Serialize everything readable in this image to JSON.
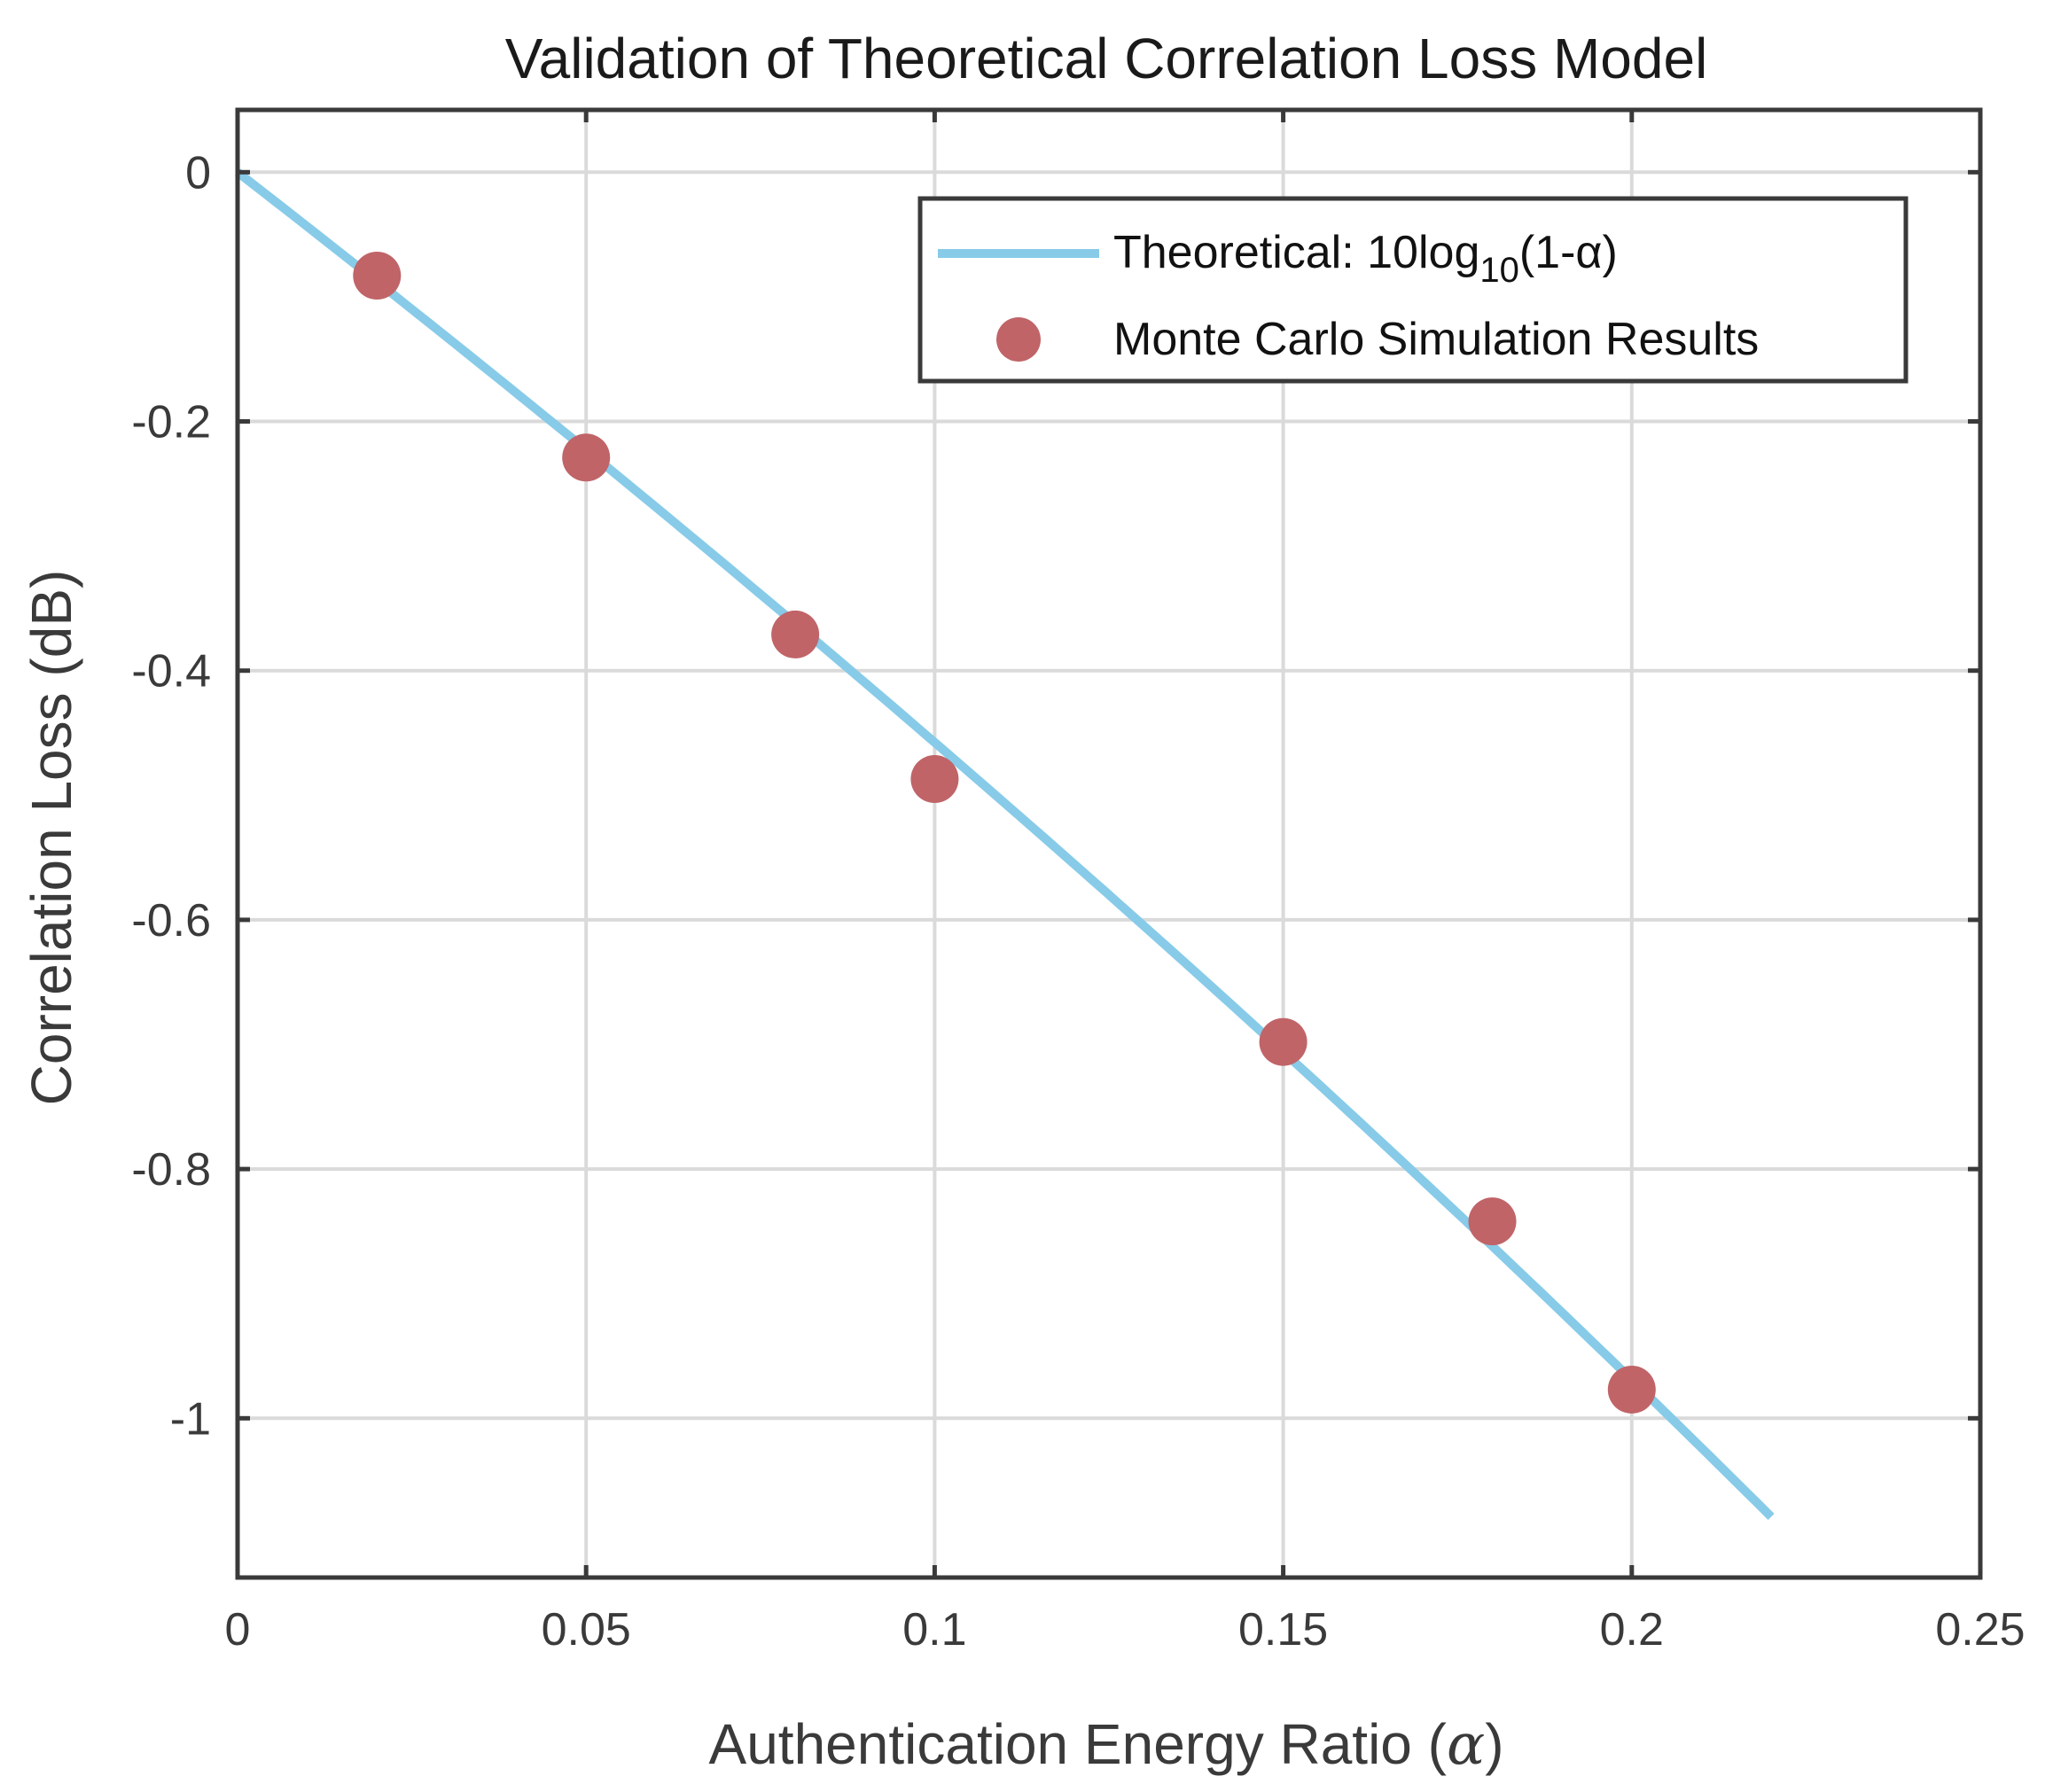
{
  "chart_data": {
    "type": "line",
    "title": "Validation of Theoretical Correlation Loss Model",
    "xlabel_prefix": "Authentication Energy Ratio (",
    "xlabel_symbol": "α",
    "xlabel_suffix": ")",
    "ylabel": "Correlation Loss (dB)",
    "xlim": [
      0,
      0.25
    ],
    "ylim": [
      -1.1278,
      0.05
    ],
    "xticks": [
      0,
      0.05,
      0.1,
      0.15,
      0.2,
      0.25
    ],
    "xtick_labels": [
      "0",
      "0.05",
      "0.1",
      "0.15",
      "0.2",
      "0.25"
    ],
    "yticks": [
      0,
      -0.2,
      -0.4,
      -0.6,
      -0.8,
      -1
    ],
    "ytick_labels": [
      "0",
      "-0.2",
      "-0.4",
      "-0.6",
      "-0.8",
      "-1"
    ],
    "grid": true,
    "legend_position": "top-right",
    "series": [
      {
        "name": "Theoretical",
        "legend_prefix": "Theoretical: 10log",
        "legend_sub": "10",
        "legend_suffix": "(1-α)",
        "kind": "line",
        "color": "#87CBE8",
        "function": "10*log10(1-x)",
        "x_range": [
          0,
          0.22
        ]
      },
      {
        "name": "Monte Carlo Simulation Results",
        "kind": "scatter",
        "color": "#C06468",
        "x": [
          0.02,
          0.05,
          0.08,
          0.1,
          0.15,
          0.18,
          0.2
        ],
        "y": [
          -0.083,
          -0.229,
          -0.371,
          -0.487,
          -0.698,
          -0.842,
          -0.977
        ]
      }
    ]
  }
}
